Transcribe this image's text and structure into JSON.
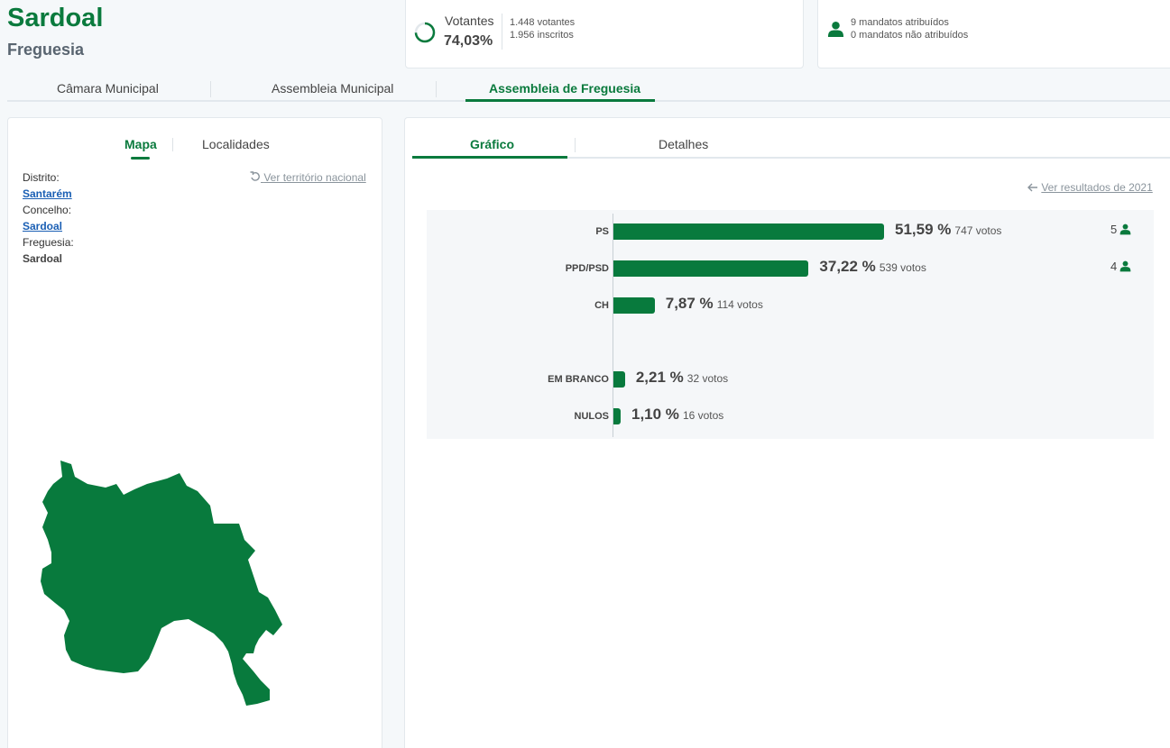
{
  "header": {
    "title": "Sardoal",
    "subtitle": "Freguesia"
  },
  "turnout": {
    "label": "Votantes",
    "percent": "74,03%",
    "percent_value": 74.03,
    "voters": "1.448 votantes",
    "registered": "1.956 inscritos"
  },
  "mandates": {
    "assigned": "9 mandatos atribuídos",
    "unassigned": "0 mandatos não atribuídos"
  },
  "main_tabs": [
    {
      "label": "Câmara Municipal",
      "active": false
    },
    {
      "label": "Assembleia Municipal",
      "active": false
    },
    {
      "label": "Assembleia de Freguesia",
      "active": true
    }
  ],
  "left_panel": {
    "tabs": [
      {
        "label": "Mapa",
        "active": true
      },
      {
        "label": "Localidades",
        "active": false
      }
    ],
    "distrito_label": "Distrito:",
    "distrito_value": "Santarém",
    "concelho_label": "Concelho:",
    "concelho_value": "Sardoal",
    "freguesia_label": "Freguesia:",
    "freguesia_value": "Sardoal",
    "national_link": "Ver território nacional"
  },
  "right_panel": {
    "tabs": [
      {
        "label": "Gráfico",
        "active": true
      },
      {
        "label": "Detalhes",
        "active": false
      }
    ],
    "previous_link": "Ver resultados de 2021"
  },
  "chart_data": {
    "type": "bar",
    "orientation": "horizontal",
    "categories": [
      "PS",
      "PPD/PSD",
      "CH",
      "EM BRANCO",
      "NULOS"
    ],
    "values": [
      51.59,
      37.22,
      7.87,
      2.21,
      1.1
    ],
    "pct_labels": [
      "51,59 %",
      "37,22 %",
      "7,87 %",
      "2,21 %",
      "1,10 %"
    ],
    "votes": [
      "747 votos",
      "539 votos",
      "114 votos",
      "32 votos",
      "16 votos"
    ],
    "seats": [
      5,
      4,
      null,
      null,
      null
    ],
    "xlim": [
      0,
      100
    ],
    "color": "#087a3d"
  },
  "colors": {
    "accent": "#0a7a3d",
    "link": "#1a5fb4"
  }
}
